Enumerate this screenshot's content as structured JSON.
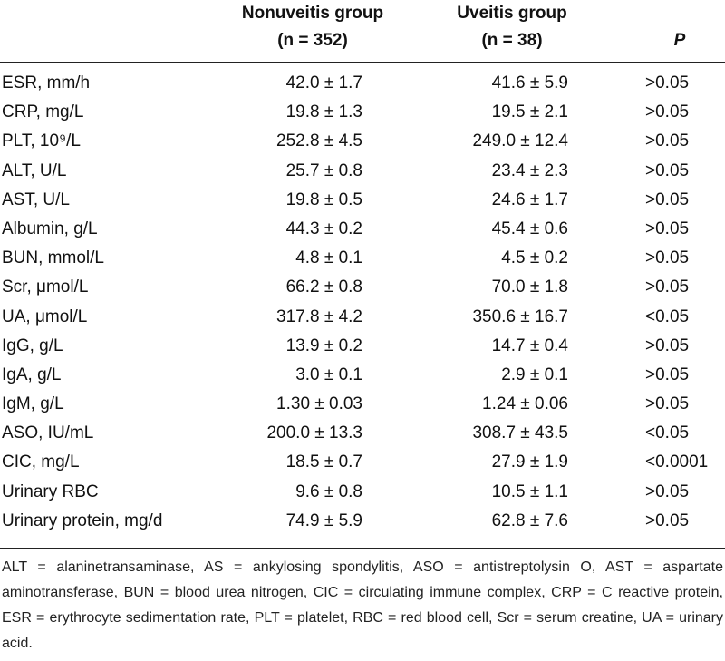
{
  "table": {
    "headers": {
      "nonuveitis_line1": "Nonuveitis group",
      "nonuveitis_line2": "(n = 352)",
      "uveitis_line1": "Uveitis group",
      "uveitis_line2": "(n = 38)",
      "p": "P"
    },
    "rows": [
      {
        "label": "ESR, mm/h",
        "nonuveitis": "42.0 ± 1.7",
        "uveitis": "41.6 ± 5.9",
        "p": ">0.05"
      },
      {
        "label": "CRP, mg/L",
        "nonuveitis": "19.8 ± 1.3",
        "uveitis": "19.5 ± 2.1",
        "p": ">0.05"
      },
      {
        "label": "PLT, 10⁹/L",
        "nonuveitis": "252.8 ± 4.5",
        "uveitis": "249.0 ± 12.4",
        "p": ">0.05"
      },
      {
        "label": "ALT, U/L",
        "nonuveitis": "25.7 ± 0.8",
        "uveitis": "23.4 ± 2.3",
        "p": ">0.05"
      },
      {
        "label": "AST, U/L",
        "nonuveitis": "19.8 ± 0.5",
        "uveitis": "24.6 ± 1.7",
        "p": ">0.05"
      },
      {
        "label": "Albumin, g/L",
        "nonuveitis": "44.3 ± 0.2",
        "uveitis": "45.4 ± 0.6",
        "p": ">0.05"
      },
      {
        "label": "BUN, mmol/L",
        "nonuveitis": "4.8 ± 0.1",
        "uveitis": "4.5 ± 0.2",
        "p": ">0.05"
      },
      {
        "label": "Scr, μmol/L",
        "nonuveitis": "66.2 ± 0.8",
        "uveitis": "70.0 ± 1.8",
        "p": ">0.05"
      },
      {
        "label": "UA, μmol/L",
        "nonuveitis": "317.8 ± 4.2",
        "uveitis": "350.6 ± 16.7",
        "p": "<0.05"
      },
      {
        "label": "IgG, g/L",
        "nonuveitis": "13.9 ± 0.2",
        "uveitis": "14.7 ± 0.4",
        "p": ">0.05"
      },
      {
        "label": "IgA, g/L",
        "nonuveitis": "3.0 ± 0.1",
        "uveitis": "2.9 ± 0.1",
        "p": ">0.05"
      },
      {
        "label": "IgM, g/L",
        "nonuveitis": "1.30 ± 0.03",
        "uveitis": "1.24 ± 0.06",
        "p": ">0.05"
      },
      {
        "label": "ASO, IU/mL",
        "nonuveitis": "200.0 ± 13.3",
        "uveitis": "308.7 ± 43.5",
        "p": "<0.05"
      },
      {
        "label": "CIC, mg/L",
        "nonuveitis": "18.5 ± 0.7",
        "uveitis": "27.9 ± 1.9",
        "p": "<0.0001"
      },
      {
        "label": "Urinary RBC",
        "nonuveitis": "9.6 ± 0.8",
        "uveitis": "10.5 ± 1.1",
        "p": ">0.05"
      },
      {
        "label": "Urinary protein, mg/d",
        "nonuveitis": "74.9 ± 5.9",
        "uveitis": "62.8 ± 7.6",
        "p": ">0.05"
      }
    ]
  },
  "footnote": "ALT = alaninetransaminase, AS = ankylosing spondylitis, ASO = antistreptolysin O, AST = aspartate aminotransferase, BUN = blood urea nitrogen, CIC = circulating immune complex, CRP = C reactive protein, ESR = erythrocyte sedimentation rate, PLT = platelet, RBC = red blood cell, Scr = serum creatine, UA = urinary acid."
}
